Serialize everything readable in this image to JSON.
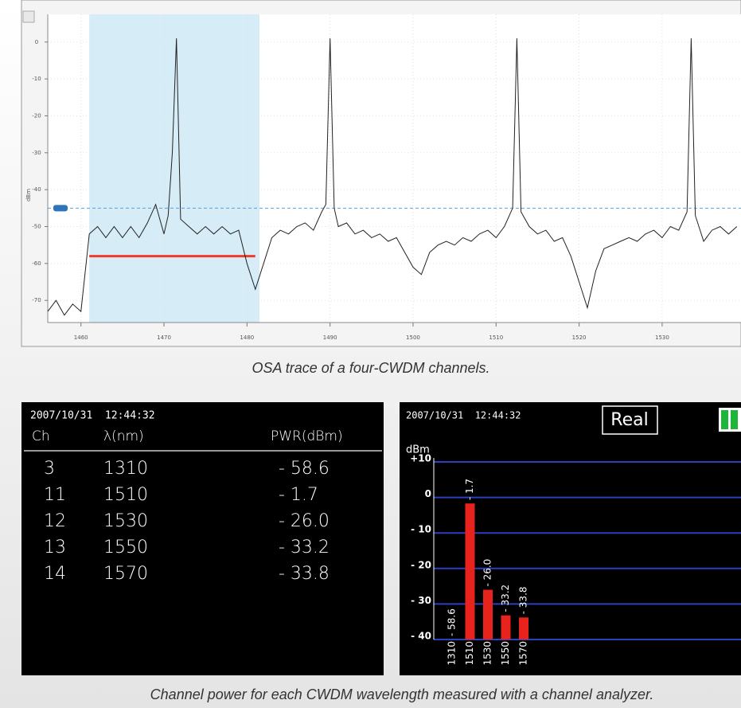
{
  "chart_data": [
    {
      "type": "line",
      "y_label": "dBm",
      "x": [
        1456,
        1457,
        1458,
        1459,
        1460,
        1461,
        1462,
        1463,
        1464,
        1465,
        1466,
        1467,
        1468,
        1469,
        1470,
        1470.5,
        1471,
        1471.5,
        1472,
        1473,
        1474,
        1475,
        1476,
        1477,
        1478,
        1479,
        1480,
        1481,
        1482,
        1483,
        1484,
        1485,
        1486,
        1487,
        1488,
        1489,
        1489.5,
        1490,
        1490.5,
        1491,
        1492,
        1493,
        1494,
        1495,
        1496,
        1497,
        1498,
        1499,
        1500,
        1501,
        1502,
        1503,
        1504,
        1505,
        1506,
        1507,
        1508,
        1509,
        1510,
        1511,
        1512,
        1512.5,
        1513,
        1514,
        1515,
        1516,
        1517,
        1518,
        1519,
        1520,
        1521,
        1522,
        1523,
        1524,
        1525,
        1526,
        1527,
        1528,
        1529,
        1530,
        1531,
        1532,
        1533,
        1533.5,
        1534,
        1535,
        1536,
        1537,
        1538,
        1539
      ],
      "series": [
        {
          "color": "#222222",
          "values": [
            -73,
            -70,
            -74,
            -71,
            -73,
            -52,
            -50,
            -53,
            -50,
            -53,
            -50,
            -53,
            -49,
            -44,
            -52,
            -47,
            -30,
            1,
            -48,
            -50,
            -52,
            -50,
            -52,
            -50,
            -52,
            -51,
            -60,
            -67,
            -60,
            -53,
            -51,
            -52,
            -50,
            -49,
            -51,
            -46,
            -44,
            1,
            -45,
            -50,
            -49,
            -52,
            -51,
            -53,
            -52,
            -54,
            -53,
            -57,
            -61,
            -63,
            -57,
            -55,
            -54,
            -55,
            -53,
            -54,
            -52,
            -51,
            -53,
            -50,
            -45,
            1,
            -46,
            -50,
            -52,
            -51,
            -54,
            -53,
            -58,
            -65,
            -72,
            -62,
            -56,
            -55,
            -54,
            -53,
            -54,
            -52,
            -51,
            -53,
            -50,
            -51,
            -46,
            1,
            -47,
            -54,
            -51,
            -50,
            -52,
            -50
          ]
        }
      ],
      "xlim": [
        1456,
        1539.5
      ],
      "ylim": [
        -76,
        7.5
      ],
      "xticks": [
        1460,
        1470,
        1480,
        1490,
        1500,
        1510,
        1520,
        1530
      ],
      "yticks": [
        0,
        -10,
        -20,
        -30,
        -40,
        -50,
        -60,
        -70
      ],
      "highlight": [
        1461,
        1481.5
      ],
      "threshold": -45,
      "reference": {
        "x": [
          1461,
          1481
        ],
        "value": -58,
        "color": "#f03a2a"
      },
      "grid": true
    },
    {
      "type": "bar",
      "timestamp": "2007/10/31  12:44:32",
      "mode": "Real",
      "y_label": "dBm",
      "categories": [
        "1310",
        "1510",
        "1530",
        "1550",
        "1570"
      ],
      "values": [
        -58.6,
        -1.7,
        -26.0,
        -33.2,
        -33.8
      ],
      "value_labels": [
        "- 58.6",
        "- 1.7",
        "- 26.0",
        "- 33.2",
        "- 33.8"
      ],
      "color": "#e8231e",
      "ylim": [
        -40,
        10
      ],
      "yticks": [
        {
          "value": 10,
          "label": "+10"
        },
        0,
        {
          "value": -10,
          "label": "- 10"
        },
        {
          "value": -20,
          "label": "- 20"
        },
        {
          "value": -30,
          "label": "- 30"
        },
        {
          "value": -40,
          "label": "- 40"
        }
      ],
      "grid": true,
      "grid_color": "#2b3fbf"
    }
  ],
  "table": {
    "timestamp": "2007/10/31  12:44:32",
    "columns": [
      "Ch",
      "λ(nm)",
      "PWR(dBm)"
    ],
    "rows": [
      [
        "3",
        "1310",
        "- 58.6"
      ],
      [
        "11",
        "1510",
        "- 1.7"
      ],
      [
        "12",
        "1530",
        "- 26.0"
      ],
      [
        "13",
        "1550",
        "- 33.2"
      ],
      [
        "14",
        "1570",
        "- 33.8"
      ]
    ]
  },
  "captions": [
    "OSA trace of a four-CWDM channels.",
    "Channel power for each CWDM wavelength measured with a channel analyzer."
  ]
}
